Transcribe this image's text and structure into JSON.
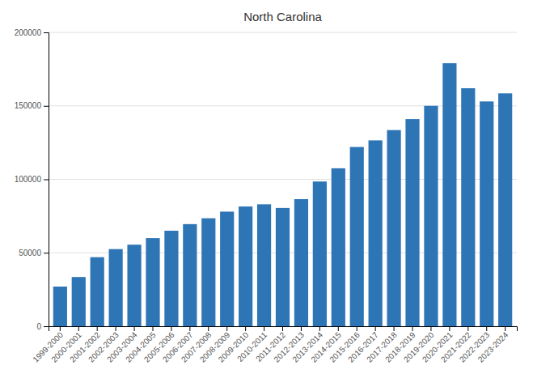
{
  "chart_data": {
    "type": "bar",
    "title": "North Carolina",
    "categories": [
      "1999-2000",
      "2000-2001",
      "2001-2002",
      "2002-2003",
      "2003-2004",
      "2004-2005",
      "2005-2006",
      "2006-2007",
      "2007-2008",
      "2008-2009",
      "2009-2010",
      "2010-2011",
      "2011-2012",
      "2012-2013",
      "2013-2014",
      "2014-2015",
      "2015-2016",
      "2016-2017",
      "2017-2018",
      "2018-2019",
      "2019-2020",
      "2020-2021",
      "2021-2022",
      "2022-2023",
      "2023-2024"
    ],
    "values": [
      27000,
      33500,
      47000,
      52500,
      55500,
      60000,
      65000,
      69500,
      73500,
      78000,
      81500,
      83000,
      80500,
      86500,
      98500,
      107500,
      122000,
      126500,
      133500,
      141000,
      150000,
      179000,
      162000,
      153000,
      158500
    ],
    "color": "#2E75B6",
    "ylim": [
      0,
      200000
    ],
    "yticks": [
      0,
      50000,
      100000,
      150000,
      200000
    ],
    "grid": true
  }
}
